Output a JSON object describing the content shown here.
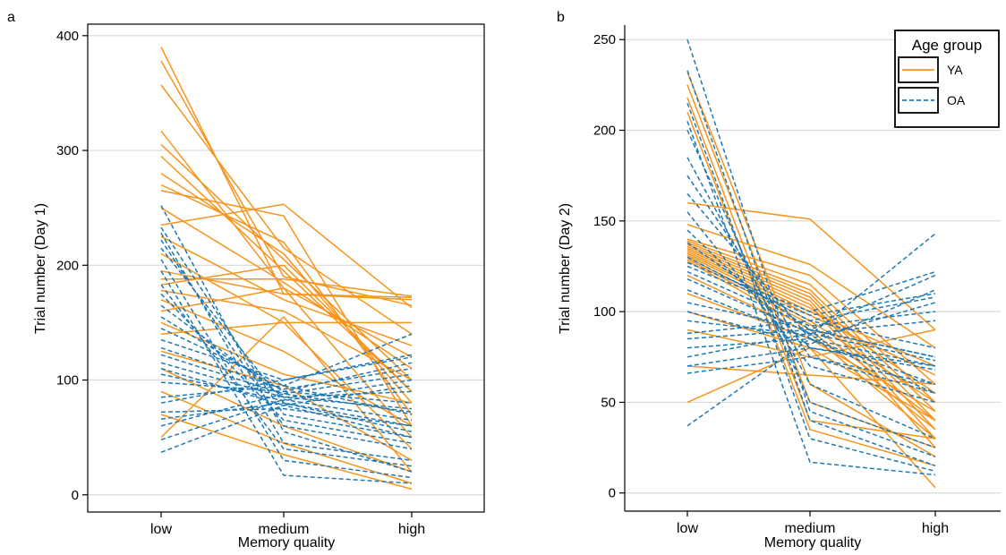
{
  "figure": {
    "panels": [
      {
        "letter": "a",
        "ylabel": "Trial number (Day 1)",
        "xlabel": "Memory quality"
      },
      {
        "letter": "b",
        "ylabel": "Trial number (Day 2)",
        "xlabel": "Memory quality"
      }
    ],
    "legend": {
      "title": "Age group",
      "entries": [
        "YA",
        "OA"
      ]
    }
  },
  "colors": {
    "YA": "#f7941d",
    "OA": "#1f78b4",
    "grid": "#d9d9d9",
    "axis": "#000000"
  },
  "chart_data": [
    {
      "type": "line",
      "panel": "a",
      "xlabel": "Memory quality",
      "ylabel": "Trial number (Day 1)",
      "categories": [
        "low",
        "medium",
        "high"
      ],
      "ylim": [
        -15,
        410
      ],
      "yticks": [
        0,
        100,
        200,
        300,
        400
      ],
      "grid": true,
      "legend": false,
      "series": [
        {
          "name": "YA",
          "style": "solid",
          "color": "#f7941d",
          "lines": [
            [
              390,
              175,
              170
            ],
            [
              378,
              190,
              165
            ],
            [
              357,
              215,
              140
            ],
            [
              317,
              180,
              120
            ],
            [
              305,
              205,
              100
            ],
            [
              295,
              195,
              90
            ],
            [
              280,
              210,
              80
            ],
            [
              270,
              220,
              70
            ],
            [
              265,
              243,
              60
            ],
            [
              250,
              185,
              110
            ],
            [
              235,
              253,
              163
            ],
            [
              225,
              170,
              130
            ],
            [
              210,
              150,
              150
            ],
            [
              195,
              175,
              172
            ],
            [
              188,
              188,
              173
            ],
            [
              183,
              200,
              90
            ],
            [
              178,
              160,
              100
            ],
            [
              170,
              125,
              60
            ],
            [
              160,
              180,
              50
            ],
            [
              150,
              105,
              80
            ],
            [
              140,
              150,
              40
            ],
            [
              125,
              95,
              30
            ],
            [
              110,
              60,
              20
            ],
            [
              90,
              45,
              10
            ],
            [
              70,
              35,
              5
            ],
            [
              50,
              155,
              20
            ]
          ]
        },
        {
          "name": "OA",
          "style": "dashed",
          "color": "#1f78b4",
          "lines": [
            [
              252,
              55,
              20
            ],
            [
              233,
              70,
              50
            ],
            [
              228,
              45,
              30
            ],
            [
              222,
              60,
              40
            ],
            [
              215,
              80,
              60
            ],
            [
              205,
              30,
              15
            ],
            [
              195,
              17,
              10
            ],
            [
              183,
              40,
              25
            ],
            [
              175,
              65,
              45
            ],
            [
              165,
              85,
              75
            ],
            [
              155,
              90,
              80
            ],
            [
              145,
              95,
              70
            ],
            [
              135,
              100,
              120
            ],
            [
              128,
              92,
              110
            ],
            [
              122,
              88,
              105
            ],
            [
              115,
              85,
              90
            ],
            [
              110,
              78,
              95
            ],
            [
              105,
              82,
              100
            ],
            [
              98,
              90,
              115
            ],
            [
              85,
              95,
              140
            ],
            [
              80,
              100,
              122
            ],
            [
              72,
              75,
              60
            ],
            [
              66,
              80,
              55
            ],
            [
              60,
              88,
              72
            ],
            [
              48,
              83,
              65
            ],
            [
              37,
              78,
              50
            ]
          ]
        }
      ]
    },
    {
      "type": "line",
      "panel": "b",
      "xlabel": "Memory quality",
      "ylabel": "Trial number (Day 2)",
      "categories": [
        "low",
        "medium",
        "high"
      ],
      "ylim": [
        -10,
        258
      ],
      "yticks": [
        0,
        50,
        100,
        150,
        200,
        250
      ],
      "grid": true,
      "legend": true,
      "legend_position": "top-right",
      "series": [
        {
          "name": "YA",
          "style": "solid",
          "color": "#f7941d",
          "lines": [
            [
              232,
              60,
              20
            ],
            [
              225,
              50,
              25
            ],
            [
              218,
              40,
              30
            ],
            [
              210,
              35,
              15
            ],
            [
              160,
              151,
              90
            ],
            [
              148,
              126,
              80
            ],
            [
              140,
              120,
              60
            ],
            [
              139,
              115,
              50
            ],
            [
              138,
              112,
              45
            ],
            [
              137,
              110,
              40
            ],
            [
              136,
              108,
              35
            ],
            [
              135,
              106,
              30
            ],
            [
              134,
              104,
              25
            ],
            [
              133,
              102,
              55
            ],
            [
              132,
              100,
              70
            ],
            [
              131,
              98,
              65
            ],
            [
              130,
              95,
              50
            ],
            [
              129,
              93,
              40
            ],
            [
              128,
              90,
              35
            ],
            [
              120,
              88,
              30
            ],
            [
              110,
              85,
              45
            ],
            [
              100,
              80,
              40
            ],
            [
              90,
              75,
              90
            ],
            [
              70,
              65,
              60
            ],
            [
              50,
              80,
              3
            ]
          ]
        },
        {
          "name": "OA",
          "style": "dashed",
          "color": "#1f78b4",
          "lines": [
            [
              250,
              45,
              20
            ],
            [
              233,
              40,
              15
            ],
            [
              215,
              30,
              12
            ],
            [
              205,
              17,
              10
            ],
            [
              200,
              50,
              25
            ],
            [
              185,
              60,
              30
            ],
            [
              175,
              75,
              55
            ],
            [
              165,
              85,
              60
            ],
            [
              155,
              70,
              50
            ],
            [
              145,
              80,
              70
            ],
            [
              138,
              90,
              75
            ],
            [
              130,
              95,
              80
            ],
            [
              127,
              100,
              122
            ],
            [
              125,
              98,
              110
            ],
            [
              122,
              92,
              100
            ],
            [
              118,
              88,
              95
            ],
            [
              112,
              85,
              105
            ],
            [
              105,
              90,
              120
            ],
            [
              100,
              82,
              112
            ],
            [
              95,
              87,
              143
            ],
            [
              88,
              95,
              108
            ],
            [
              85,
              90,
              75
            ],
            [
              80,
              85,
              70
            ],
            [
              75,
              88,
              73
            ],
            [
              70,
              80,
              68
            ],
            [
              66,
              75,
              60
            ],
            [
              37,
              85,
              55
            ]
          ]
        }
      ]
    }
  ]
}
